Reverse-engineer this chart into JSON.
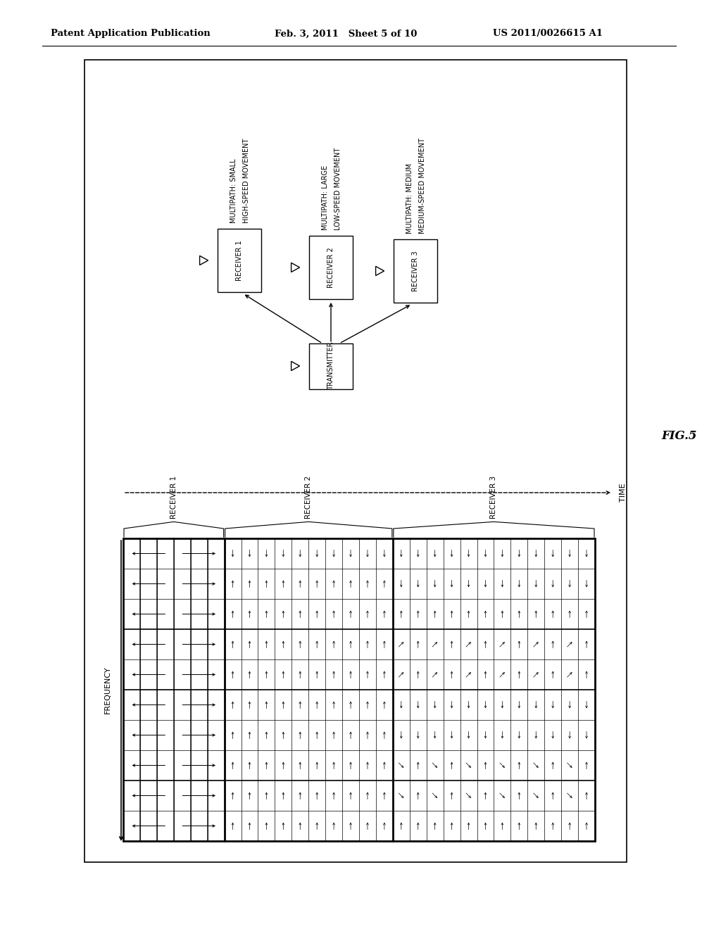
{
  "bg_color": "#ffffff",
  "header_left": "Patent Application Publication",
  "header_mid": "Feb. 3, 2011   Sheet 5 of 10",
  "header_right": "US 2011/0026615 A1",
  "fig_label": "FIG.5",
  "receiver1_label": "RECEIVER 1",
  "receiver2_label": "RECEIVER 2",
  "receiver3_label": "RECEIVER 3",
  "transmitter_label": "TRANSMITTER",
  "receiver1_desc1": "HIGH-SPEED MOVEMENT",
  "receiver1_desc2": "MULTIPATH: SMALL",
  "receiver2_desc1": "LOW-SPEED MOVEMENT",
  "receiver2_desc2": "MULTIPATH: LARGE",
  "receiver3_desc1": "MEDIUM-SPEED MOVEMENT",
  "receiver3_desc2": "MULTIPATH: MEDIUM",
  "freq_label": "FREQUENCY",
  "time_label": "TIME",
  "grid_rows": 10,
  "grid_rec1_cols": 6,
  "grid_rec2_cols": 10,
  "grid_rec3_cols": 12
}
